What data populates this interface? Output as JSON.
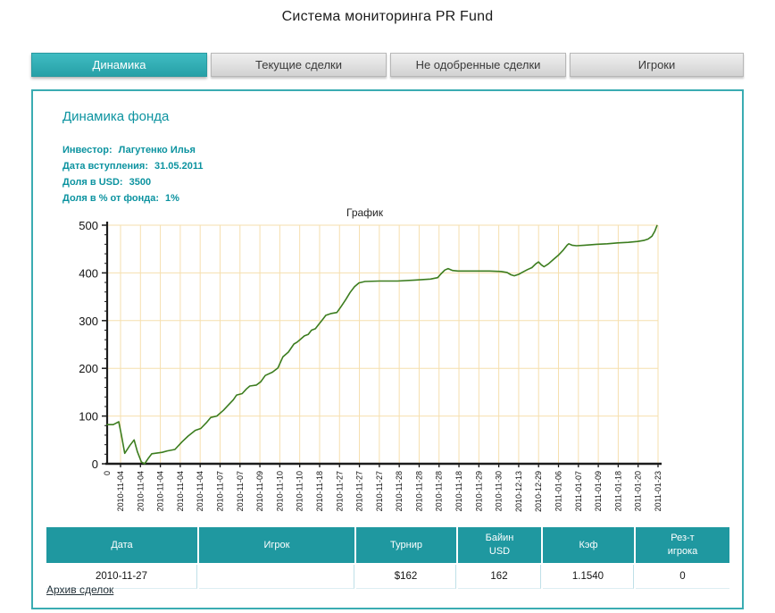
{
  "page": {
    "title": "Система мониторинга PR Fund"
  },
  "tabs": [
    {
      "label": "Динамика",
      "active": true
    },
    {
      "label": "Текущие сделки",
      "active": false
    },
    {
      "label": "Не одобренные сделки",
      "active": false
    },
    {
      "label": "Игроки",
      "active": false
    }
  ],
  "panel": {
    "heading": "Динамика фонда",
    "info": [
      {
        "label": "Инвестор:",
        "value": "Лагутенко Илья"
      },
      {
        "label": "Дата вступления:",
        "value": "31.05.2011"
      },
      {
        "label": "Доля в USD:",
        "value": "3500"
      },
      {
        "label": "Доля в % от фонда:",
        "value": "1%"
      }
    ],
    "archive_link": "Архив сделок"
  },
  "chart_data": {
    "type": "line",
    "title": "График",
    "xlabel": "",
    "ylabel": "",
    "ylim": [
      0,
      500
    ],
    "yticks": [
      0,
      100,
      200,
      300,
      400,
      500
    ],
    "y_minor_step": 20,
    "grid": true,
    "grid_color": "#f6dfae",
    "axis_color": "#1c1c1c",
    "origin_label": "0",
    "x_tick_labels": [
      "2010-11-04",
      "2010-11-04",
      "2010-11-04",
      "2010-11-04",
      "2010-11-04",
      "2010-11-07",
      "2010-11-07",
      "2010-11-09",
      "2010-11-10",
      "2010-11-10",
      "2010-11-18",
      "2010-11-27",
      "2010-11-27",
      "2010-11-27",
      "2010-11-28",
      "2010-11-28",
      "2010-11-28",
      "2010-11-18",
      "2010-11-29",
      "2010-11-30",
      "2010-12-13",
      "2010-12-29",
      "2011-01-06",
      "2011-01-07",
      "2011-01-09",
      "2011-01-18",
      "2011-01-20",
      "2011-01-23"
    ],
    "series": [
      {
        "name": "Динамика фонда",
        "color": "#3c7d1f",
        "points": [
          [
            0.0,
            82
          ],
          [
            0.011,
            82
          ],
          [
            0.021,
            88
          ],
          [
            0.026,
            60
          ],
          [
            0.032,
            22
          ],
          [
            0.041,
            38
          ],
          [
            0.049,
            50
          ],
          [
            0.055,
            25
          ],
          [
            0.062,
            4
          ],
          [
            0.068,
            0
          ],
          [
            0.075,
            12
          ],
          [
            0.081,
            21
          ],
          [
            0.1,
            24
          ],
          [
            0.109,
            27
          ],
          [
            0.123,
            30
          ],
          [
            0.136,
            46
          ],
          [
            0.147,
            58
          ],
          [
            0.16,
            70
          ],
          [
            0.17,
            74
          ],
          [
            0.18,
            86
          ],
          [
            0.188,
            97
          ],
          [
            0.199,
            100
          ],
          [
            0.211,
            112
          ],
          [
            0.22,
            123
          ],
          [
            0.229,
            134
          ],
          [
            0.235,
            144
          ],
          [
            0.245,
            147
          ],
          [
            0.253,
            157
          ],
          [
            0.259,
            163
          ],
          [
            0.271,
            165
          ],
          [
            0.279,
            172
          ],
          [
            0.287,
            185
          ],
          [
            0.3,
            192
          ],
          [
            0.31,
            201
          ],
          [
            0.319,
            224
          ],
          [
            0.329,
            234
          ],
          [
            0.339,
            251
          ],
          [
            0.345,
            255
          ],
          [
            0.352,
            262
          ],
          [
            0.358,
            268
          ],
          [
            0.365,
            271
          ],
          [
            0.371,
            280
          ],
          [
            0.378,
            283
          ],
          [
            0.384,
            292
          ],
          [
            0.391,
            302
          ],
          [
            0.397,
            311
          ],
          [
            0.407,
            315
          ],
          [
            0.417,
            317
          ],
          [
            0.425,
            330
          ],
          [
            0.433,
            344
          ],
          [
            0.441,
            359
          ],
          [
            0.449,
            371
          ],
          [
            0.457,
            379
          ],
          [
            0.468,
            382
          ],
          [
            0.494,
            383
          ],
          [
            0.527,
            383
          ],
          [
            0.559,
            385
          ],
          [
            0.587,
            387
          ],
          [
            0.6,
            390
          ],
          [
            0.606,
            398
          ],
          [
            0.613,
            406
          ],
          [
            0.619,
            409
          ],
          [
            0.627,
            405
          ],
          [
            0.637,
            404
          ],
          [
            0.668,
            404
          ],
          [
            0.694,
            404
          ],
          [
            0.715,
            403
          ],
          [
            0.726,
            401
          ],
          [
            0.733,
            396
          ],
          [
            0.739,
            394
          ],
          [
            0.747,
            397
          ],
          [
            0.755,
            402
          ],
          [
            0.763,
            407
          ],
          [
            0.771,
            411
          ],
          [
            0.778,
            419
          ],
          [
            0.783,
            423
          ],
          [
            0.788,
            417
          ],
          [
            0.793,
            413
          ],
          [
            0.801,
            419
          ],
          [
            0.81,
            428
          ],
          [
            0.82,
            438
          ],
          [
            0.828,
            448
          ],
          [
            0.835,
            458
          ],
          [
            0.838,
            461
          ],
          [
            0.844,
            458
          ],
          [
            0.852,
            457
          ],
          [
            0.867,
            458
          ],
          [
            0.888,
            460
          ],
          [
            0.908,
            461
          ],
          [
            0.927,
            463
          ],
          [
            0.946,
            464
          ],
          [
            0.963,
            466
          ],
          [
            0.974,
            468
          ],
          [
            0.982,
            471
          ],
          [
            0.989,
            477
          ],
          [
            0.994,
            487
          ],
          [
            0.998,
            499
          ]
        ]
      }
    ],
    "legend": null
  },
  "table": {
    "headers": [
      "Дата",
      "Игрок",
      "Турнир",
      "Байин\nUSD",
      "Кэф",
      "Рез-т\nигрока"
    ],
    "rows": [
      [
        "2010-11-27",
        "",
        "$162",
        "162",
        "1.1540",
        "0"
      ]
    ]
  },
  "colors": {
    "accent_teal": "#2faab1",
    "table_header_teal": "#1f98a0",
    "panel_border": "#3aacb2",
    "info_text": "#0c93a0",
    "line_green": "#3c7d1f",
    "grid_wheat": "#f6dfae"
  }
}
